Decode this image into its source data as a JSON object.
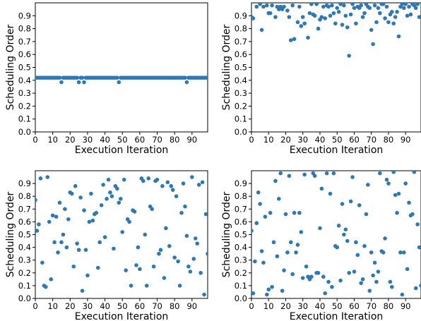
{
  "chart_data": [
    {
      "type": "scatter",
      "xlabel": "Execution Iteration",
      "ylabel": "Scheduling Order",
      "xlim": [
        0,
        99
      ],
      "ylim": [
        0,
        1
      ],
      "xticks": [
        0,
        10,
        20,
        30,
        40,
        50,
        60,
        70,
        80,
        90
      ],
      "yticks": [
        0.0,
        0.1,
        0.2,
        0.3,
        0.4,
        0.5,
        0.6,
        0.7,
        0.8,
        0.9
      ],
      "xtick_labels": [
        "0",
        "10",
        "20",
        "30",
        "40",
        "50",
        "60",
        "70",
        "80",
        "90"
      ],
      "ytick_labels": [
        "0.0",
        "0.1",
        "0.2",
        "0.3",
        "0.4",
        "0.5",
        "0.6",
        "0.7",
        "0.8",
        "0.9"
      ],
      "color": "#2f78b4",
      "x": [
        0,
        1,
        2,
        3,
        4,
        5,
        6,
        7,
        8,
        9,
        10,
        11,
        12,
        13,
        14,
        15,
        16,
        17,
        18,
        19,
        20,
        21,
        22,
        23,
        24,
        25,
        26,
        27,
        28,
        29,
        30,
        31,
        32,
        33,
        34,
        35,
        36,
        37,
        38,
        39,
        40,
        41,
        42,
        43,
        44,
        45,
        46,
        47,
        48,
        49,
        50,
        51,
        52,
        53,
        54,
        55,
        56,
        57,
        58,
        59,
        60,
        61,
        62,
        63,
        64,
        65,
        66,
        67,
        68,
        69,
        70,
        71,
        72,
        73,
        74,
        75,
        76,
        77,
        78,
        79,
        80,
        81,
        82,
        83,
        84,
        85,
        86,
        87,
        88,
        89,
        90,
        91,
        92,
        93,
        94,
        95,
        96,
        97,
        98,
        99
      ],
      "y": [
        0.42,
        0.42,
        0.42,
        0.42,
        0.42,
        0.42,
        0.42,
        0.42,
        0.42,
        0.42,
        0.42,
        0.42,
        0.42,
        0.42,
        0.42,
        0.385,
        0.42,
        0.42,
        0.42,
        0.42,
        0.42,
        0.42,
        0.42,
        0.42,
        0.42,
        0.385,
        0.42,
        0.42,
        0.385,
        0.42,
        0.42,
        0.42,
        0.42,
        0.42,
        0.42,
        0.42,
        0.42,
        0.42,
        0.42,
        0.42,
        0.42,
        0.42,
        0.42,
        0.42,
        0.42,
        0.42,
        0.42,
        0.42,
        0.385,
        0.42,
        0.42,
        0.42,
        0.42,
        0.42,
        0.42,
        0.42,
        0.42,
        0.42,
        0.42,
        0.42,
        0.42,
        0.42,
        0.42,
        0.42,
        0.42,
        0.42,
        0.42,
        0.42,
        0.42,
        0.42,
        0.42,
        0.42,
        0.42,
        0.42,
        0.42,
        0.42,
        0.42,
        0.42,
        0.42,
        0.42,
        0.42,
        0.42,
        0.42,
        0.42,
        0.42,
        0.42,
        0.42,
        0.385,
        0.42,
        0.42,
        0.42,
        0.42,
        0.42,
        0.42,
        0.42,
        0.42,
        0.42,
        0.42,
        0.42,
        0.42
      ]
    },
    {
      "type": "scatter",
      "xlabel": "Execution Iteration",
      "ylabel": "Scheduling Order",
      "xlim": [
        0,
        99
      ],
      "ylim": [
        0,
        1
      ],
      "xticks": [
        0,
        10,
        20,
        30,
        40,
        50,
        60,
        70,
        80,
        90
      ],
      "yticks": [
        0.0,
        0.1,
        0.2,
        0.3,
        0.4,
        0.5,
        0.6,
        0.7,
        0.8,
        0.9
      ],
      "xtick_labels": [
        "0",
        "10",
        "20",
        "30",
        "40",
        "50",
        "60",
        "70",
        "80",
        "90"
      ],
      "ytick_labels": [
        "0.0",
        "0.1",
        "0.2",
        "0.3",
        "0.4",
        "0.5",
        "0.6",
        "0.7",
        "0.8",
        "0.9"
      ],
      "color": "#2f78b4",
      "x": [
        0,
        1,
        3,
        5,
        6,
        7,
        9,
        10,
        11,
        12,
        14,
        15,
        16,
        17,
        18,
        19,
        21,
        22,
        23,
        24,
        25,
        27,
        28,
        29,
        30,
        31,
        33,
        34,
        35,
        36,
        37,
        38,
        39,
        40,
        41,
        42,
        43,
        44,
        45,
        46,
        47,
        48,
        49,
        50,
        51,
        52,
        53,
        54,
        55,
        56,
        57,
        58,
        59,
        60,
        61,
        62,
        63,
        64,
        65,
        66,
        67,
        68,
        69,
        70,
        71,
        72,
        73,
        74,
        75,
        76,
        77,
        78,
        79,
        80,
        81,
        82,
        83,
        84,
        85,
        86,
        87,
        88,
        89,
        90,
        91,
        92,
        93,
        94,
        95,
        96,
        97,
        98
      ],
      "y": [
        0.89,
        0.88,
        0.97,
        0.99,
        0.79,
        0.97,
        0.98,
        0.92,
        0.92,
        0.98,
        0.89,
        0.97,
        0.95,
        0.97,
        0.95,
        0.97,
        0.94,
        0.89,
        0.71,
        0.98,
        0.72,
        0.85,
        0.97,
        0.82,
        0.89,
        0.84,
        0.73,
        0.92,
        0.99,
        0.91,
        0.9,
        0.99,
        0.8,
        0.87,
        0.89,
        0.97,
        0.88,
        0.98,
        0.97,
        0.9,
        0.98,
        0.92,
        0.84,
        0.96,
        0.93,
        0.99,
        0.83,
        0.98,
        0.9,
        0.81,
        0.59,
        0.91,
        0.99,
        0.96,
        0.84,
        0.97,
        0.96,
        0.98,
        0.89,
        0.92,
        0.99,
        0.97,
        0.96,
        0.79,
        0.68,
        0.98,
        0.85,
        0.96,
        0.92,
        0.99,
        0.99,
        0.88,
        0.97,
        0.85,
        0.91,
        0.93,
        0.84,
        0.89,
        0.93,
        0.74,
        0.97,
        0.99,
        0.96,
        0.99,
        0.9,
        0.97,
        0.91,
        0.99,
        0.98,
        0.96,
        0.99,
        0.89
      ]
    },
    {
      "type": "scatter",
      "xlabel": "Execution Iteration",
      "ylabel": "Scheduling Order",
      "xlim": [
        0,
        99
      ],
      "ylim": [
        0,
        1
      ],
      "xticks": [
        0,
        10,
        20,
        30,
        40,
        50,
        60,
        70,
        80,
        90
      ],
      "yticks": [
        0.0,
        0.1,
        0.2,
        0.3,
        0.4,
        0.5,
        0.6,
        0.7,
        0.8,
        0.9
      ],
      "xtick_labels": [
        "0",
        "10",
        "20",
        "30",
        "40",
        "50",
        "60",
        "70",
        "80",
        "90"
      ],
      "ytick_labels": [
        "0.0",
        "0.1",
        "0.2",
        "0.3",
        "0.4",
        "0.5",
        "0.6",
        "0.7",
        "0.8",
        "0.9"
      ],
      "color": "#2f78b4",
      "x": [
        0,
        1,
        2,
        3,
        4,
        5,
        6,
        7,
        8,
        9,
        10,
        11,
        12,
        13,
        14,
        15,
        16,
        17,
        18,
        19,
        20,
        21,
        22,
        23,
        24,
        25,
        26,
        27,
        28,
        29,
        30,
        31,
        32,
        33,
        34,
        35,
        36,
        37,
        38,
        39,
        40,
        41,
        42,
        43,
        44,
        45,
        46,
        47,
        48,
        49,
        50,
        51,
        52,
        53,
        54,
        55,
        56,
        57,
        58,
        59,
        60,
        61,
        62,
        63,
        64,
        65,
        66,
        67,
        68,
        69,
        70,
        71,
        72,
        73,
        74,
        75,
        76,
        77,
        78,
        79,
        80,
        81,
        82,
        83,
        84,
        85,
        86,
        87,
        88,
        89,
        90,
        91,
        92,
        93,
        94,
        95,
        96,
        97,
        98,
        99
      ],
      "y": [
        0.77,
        0.53,
        0.58,
        0.94,
        0.28,
        0.1,
        0.09,
        0.95,
        0.6,
        0.15,
        0.65,
        0.44,
        0.64,
        0.36,
        0.75,
        0.44,
        0.5,
        0.7,
        0.4,
        0.62,
        0.83,
        0.82,
        0.25,
        0.88,
        0.43,
        0.38,
        0.79,
        0.06,
        0.69,
        0.38,
        0.18,
        0.6,
        0.82,
        0.61,
        0.66,
        0.67,
        0.24,
        0.44,
        0.73,
        0.89,
        0.48,
        0.78,
        0.93,
        0.83,
        0.8,
        0.39,
        0.88,
        0.86,
        0.75,
        0.78,
        0.52,
        0.93,
        0.22,
        0.62,
        0.6,
        0.1,
        0.69,
        0.68,
        0.26,
        0.4,
        0.23,
        0.94,
        0.92,
        0.5,
        0.1,
        0.94,
        0.72,
        0.7,
        0.25,
        0.92,
        0.93,
        0.35,
        0.38,
        0.88,
        0.16,
        0.55,
        0.91,
        0.41,
        0.88,
        0.85,
        0.32,
        0.8,
        0.29,
        0.1,
        0.67,
        0.9,
        0.72,
        0.49,
        0.25,
        0.21,
        0.95,
        0.31,
        0.47,
        0.43,
        0.89,
        0.2,
        0.91,
        0.03,
        0.66,
        0.35
      ]
    },
    {
      "type": "scatter",
      "xlabel": "Execution Iteration",
      "ylabel": "Scheduling Order",
      "xlim": [
        0,
        99
      ],
      "ylim": [
        0,
        1
      ],
      "xticks": [
        0,
        10,
        20,
        30,
        40,
        50,
        60,
        70,
        80,
        90
      ],
      "yticks": [
        0.0,
        0.1,
        0.2,
        0.3,
        0.4,
        0.5,
        0.6,
        0.7,
        0.8,
        0.9
      ],
      "xtick_labels": [
        "0",
        "10",
        "20",
        "30",
        "40",
        "50",
        "60",
        "70",
        "80",
        "90"
      ],
      "ytick_labels": [
        "0.0",
        "0.1",
        "0.2",
        "0.3",
        "0.4",
        "0.5",
        "0.6",
        "0.7",
        "0.8",
        "0.9"
      ],
      "color": "#2f78b4",
      "x": [
        0,
        1,
        2,
        3,
        4,
        5,
        6,
        7,
        8,
        9,
        10,
        11,
        12,
        13,
        14,
        15,
        16,
        17,
        18,
        19,
        20,
        21,
        22,
        23,
        24,
        25,
        26,
        27,
        28,
        29,
        30,
        31,
        32,
        33,
        34,
        35,
        36,
        37,
        38,
        39,
        40,
        41,
        42,
        43,
        44,
        45,
        46,
        47,
        48,
        49,
        50,
        51,
        52,
        53,
        54,
        55,
        56,
        57,
        58,
        59,
        60,
        61,
        62,
        63,
        64,
        65,
        66,
        67,
        68,
        69,
        70,
        71,
        72,
        73,
        74,
        75,
        76,
        77,
        78,
        79,
        80,
        81,
        82,
        83,
        84,
        85,
        86,
        87,
        88,
        89,
        90,
        91,
        92,
        93,
        94,
        95,
        96,
        97,
        98,
        99
      ],
      "y": [
        0.53,
        0.04,
        0.29,
        0.59,
        0.83,
        0.74,
        0.37,
        0.28,
        0.64,
        0.03,
        0.07,
        0.67,
        0.09,
        0.44,
        0.92,
        0.33,
        0.78,
        0.98,
        0.06,
        0.22,
        0.66,
        0.36,
        0.96,
        0.44,
        0.19,
        0.67,
        0.36,
        0.42,
        0.67,
        0.52,
        0.16,
        0.97,
        0.25,
        0.17,
        0.15,
        0.17,
        0.98,
        0.96,
        0.2,
        0.2,
        0.55,
        0.86,
        0.17,
        0.04,
        0.98,
        0.13,
        0.82,
        0.09,
        0.98,
        0.41,
        0.4,
        0.57,
        0.14,
        0.74,
        0.5,
        0.54,
        0.45,
        0.2,
        0.76,
        0.95,
        0.21,
        0.44,
        0.34,
        0.73,
        0.12,
        0.15,
        0.41,
        0.66,
        0.89,
        0.06,
        0.36,
        0.18,
        0.28,
        0.13,
        0.21,
        0.98,
        0.37,
        0.36,
        0.47,
        0.93,
        0.9,
        0.13,
        0.09,
        0.99,
        0.81,
        0.67,
        0.82,
        0.36,
        0.03,
        0.36,
        0.9,
        0.23,
        0.75,
        0.65,
        0.66,
        0.99,
        0.08,
        0.58,
        0.4,
        0.1
      ]
    }
  ]
}
